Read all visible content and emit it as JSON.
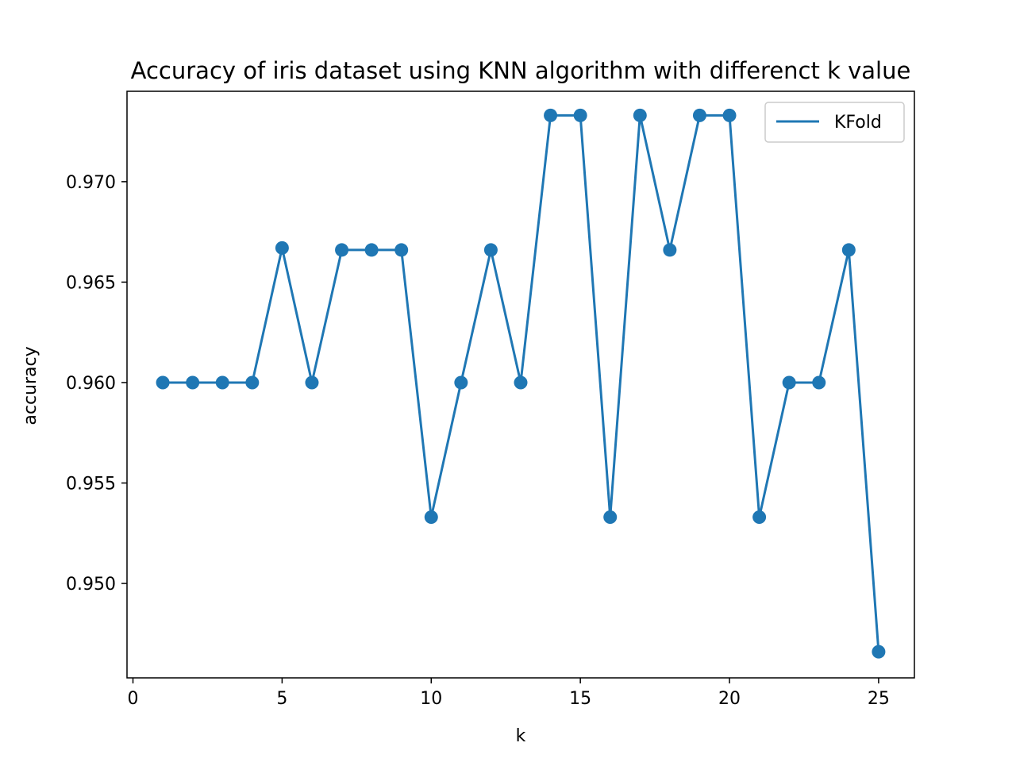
{
  "chart_data": {
    "type": "line",
    "title": "Accuracy of iris dataset using KNN algorithm with differenct k value",
    "xlabel": "k",
    "ylabel": "accuracy",
    "xlim": [
      -0.2,
      26.2
    ],
    "ylim": [
      0.9453,
      0.9745
    ],
    "x_ticks": [
      0,
      5,
      10,
      15,
      20,
      25
    ],
    "x_tick_labels": [
      "0",
      "5",
      "10",
      "15",
      "20",
      "25"
    ],
    "y_ticks": [
      0.95,
      0.955,
      0.96,
      0.965,
      0.97
    ],
    "y_tick_labels": [
      "0.950",
      "0.955",
      "0.960",
      "0.965",
      "0.970"
    ],
    "grid": false,
    "legend_position": "top-right",
    "series": [
      {
        "name": "KFold",
        "color": "#1f77b4",
        "marker": "circle",
        "x": [
          1,
          2,
          3,
          4,
          5,
          6,
          7,
          8,
          9,
          10,
          11,
          12,
          13,
          14,
          15,
          16,
          17,
          18,
          19,
          20,
          21,
          22,
          23,
          24,
          25
        ],
        "values": [
          0.96,
          0.96,
          0.96,
          0.96,
          0.9667,
          0.96,
          0.9666,
          0.9666,
          0.9666,
          0.9533,
          0.96,
          0.9666,
          0.96,
          0.9733,
          0.9733,
          0.9533,
          0.9733,
          0.9666,
          0.9733,
          0.9733,
          0.9533,
          0.96,
          0.96,
          0.9666,
          0.9466
        ]
      }
    ]
  }
}
